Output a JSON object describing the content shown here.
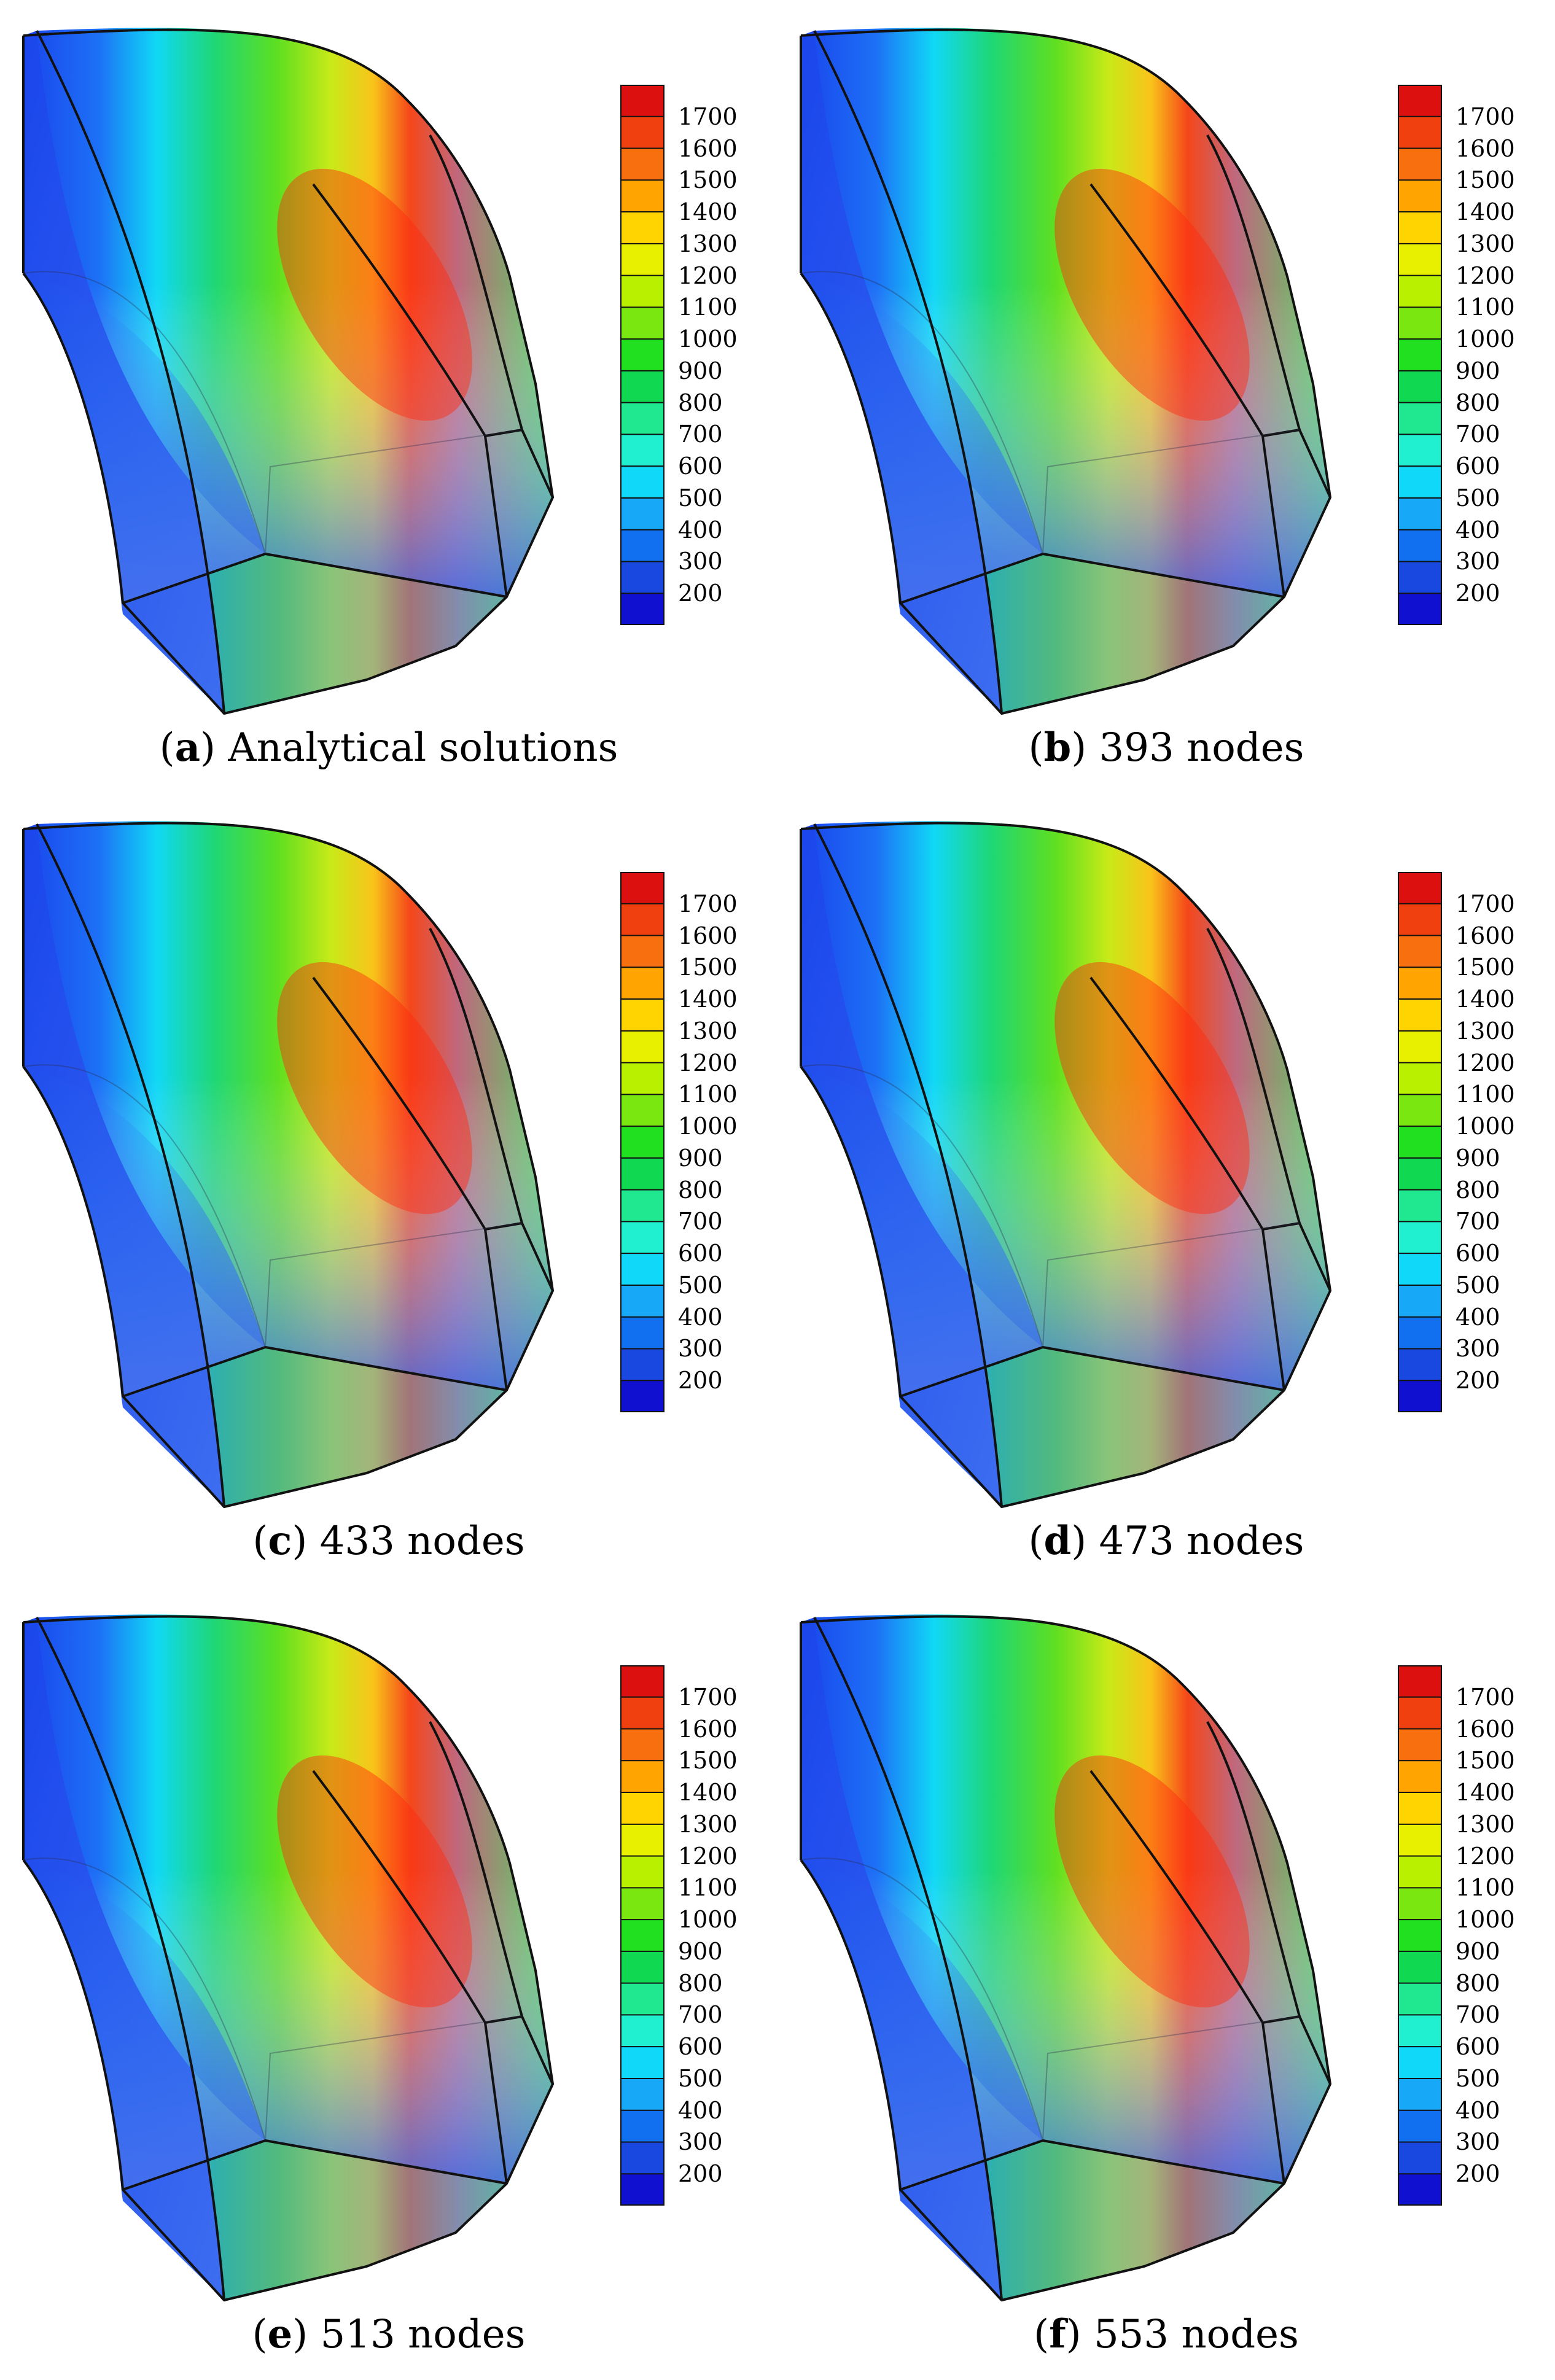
{
  "colorbar": {
    "ticks": [
      "1700",
      "1600",
      "1500",
      "1400",
      "1300",
      "1200",
      "1100",
      "1000",
      "900",
      "800",
      "700",
      "600",
      "500",
      "400",
      "300",
      "200"
    ],
    "colors": [
      "#dd1010",
      "#f04010",
      "#f86f10",
      "#ffa400",
      "#ffd400",
      "#e8f000",
      "#b8f000",
      "#7ae810",
      "#20e020",
      "#10d850",
      "#20e890",
      "#20f0d0",
      "#10d8f8",
      "#18a8f8",
      "#1070f0",
      "#1848e0",
      "#1010d0"
    ]
  },
  "panels": [
    {
      "letter": "a",
      "label": "Analytical solutions"
    },
    {
      "letter": "b",
      "label": "393 nodes"
    },
    {
      "letter": "c",
      "label": "433 nodes"
    },
    {
      "letter": "d",
      "label": "473 nodes"
    },
    {
      "letter": "e",
      "label": "513 nodes"
    },
    {
      "letter": "f",
      "label": "553 nodes"
    }
  ]
}
